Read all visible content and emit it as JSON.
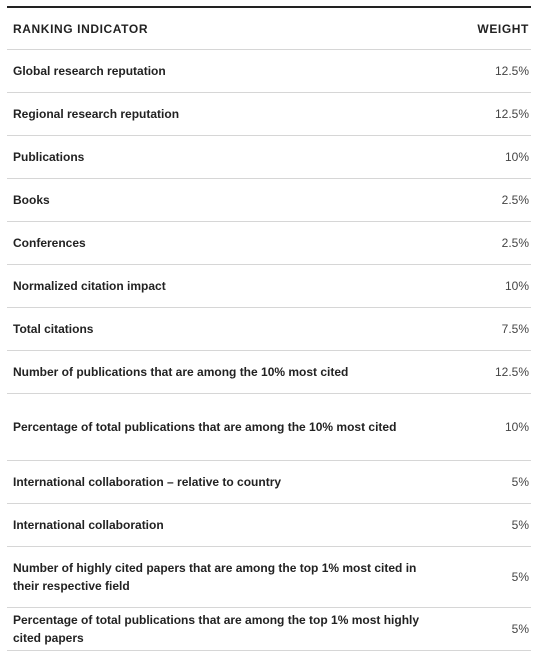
{
  "table": {
    "headers": {
      "indicator": "RANKING INDICATOR",
      "weight": "WEIGHT"
    },
    "rows": [
      {
        "indicator": "Global research reputation",
        "weight": "12.5%"
      },
      {
        "indicator": "Regional research reputation",
        "weight": "12.5%"
      },
      {
        "indicator": "Publications",
        "weight": "10%"
      },
      {
        "indicator": "Books",
        "weight": "2.5%"
      },
      {
        "indicator": "Conferences",
        "weight": "2.5%"
      },
      {
        "indicator": "Normalized citation impact",
        "weight": "10%"
      },
      {
        "indicator": "Total citations",
        "weight": "7.5%"
      },
      {
        "indicator": "Number of publications that are among the 10% most cited",
        "weight": "12.5%"
      },
      {
        "indicator": "Percentage of total publications that are among the 10% most cited",
        "weight": "10%"
      },
      {
        "indicator": "International collaboration – relative to country",
        "weight": "5%"
      },
      {
        "indicator": "International collaboration",
        "weight": "5%"
      },
      {
        "indicator": "Number of highly cited papers that are among the top 1% most cited in their respective field",
        "weight": "5%"
      },
      {
        "indicator": "Percentage of total publications that are among the top 1% most highly cited papers",
        "weight": "5%"
      }
    ]
  }
}
